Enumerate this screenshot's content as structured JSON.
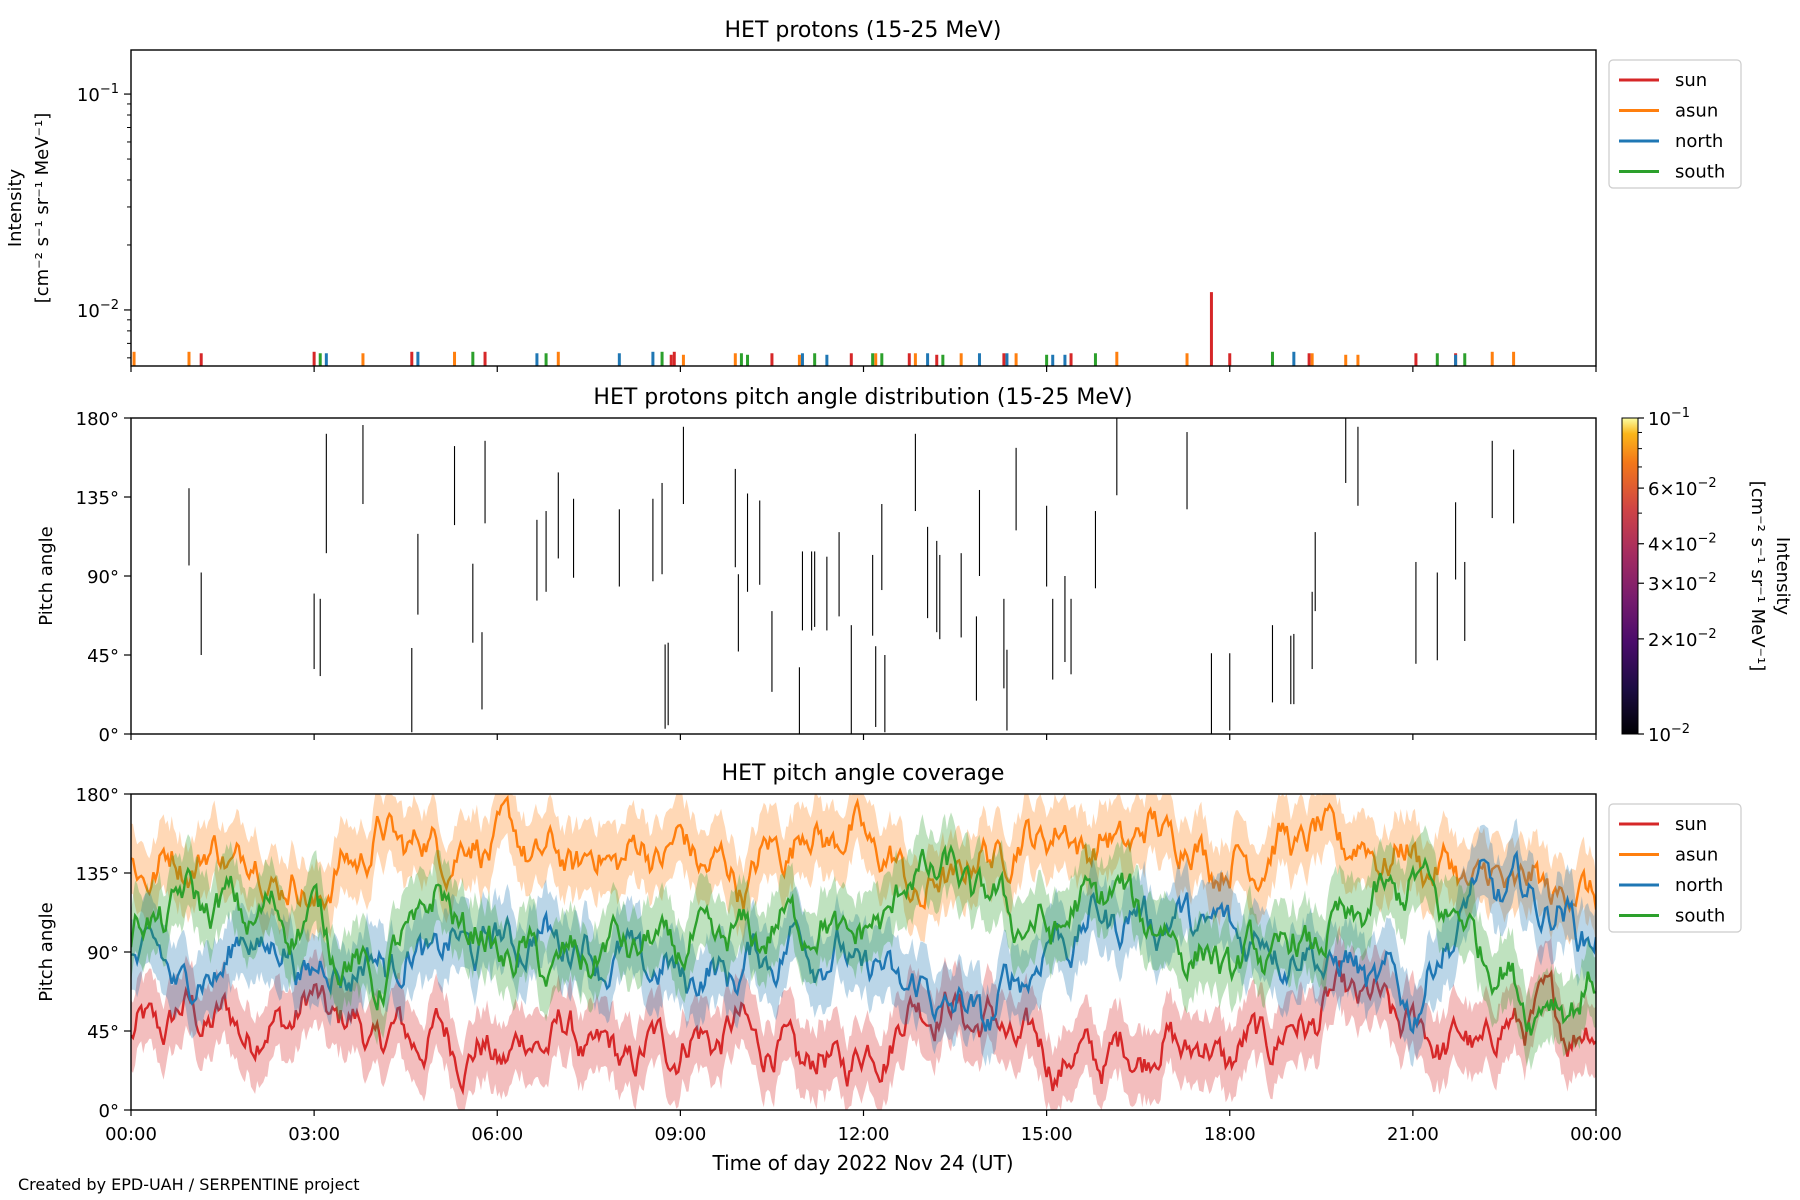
{
  "footer": "Created by EPD-UAH / SERPENTINE project",
  "colors": {
    "sun": "#d62728",
    "asun": "#ff7f0e",
    "north": "#1f77b4",
    "south": "#2ca02c",
    "pad_line": "#000000"
  },
  "chart_data": [
    {
      "type": "line",
      "title": "HET protons (15-25 MeV)",
      "xlabel": "",
      "ylabel_line1": "Intensity",
      "ylabel_line2": "[cm⁻² s⁻¹ sr⁻¹ MeV⁻¹]",
      "yscale": "log",
      "ylim": [
        0.0055,
        0.16
      ],
      "ytick_labels": [
        {
          "value": 0.1,
          "base": "10",
          "exp": "−1"
        },
        {
          "value": 0.01,
          "base": "10",
          "exp": "−2"
        }
      ],
      "xlim": [
        0,
        24
      ],
      "baseline": 0.0055,
      "legend_placement": "outside upper right",
      "series": [
        {
          "name": "sun",
          "color": "#d62728",
          "points": [
            [
              1.15,
              0.0063
            ],
            [
              3.0,
              0.0064
            ],
            [
              4.6,
              0.0064
            ],
            [
              5.8,
              0.0064
            ],
            [
              8.9,
              0.0064
            ],
            [
              8.85,
              0.0062
            ],
            [
              10.5,
              0.0063
            ],
            [
              11.8,
              0.0063
            ],
            [
              12.75,
              0.0063
            ],
            [
              13.2,
              0.0062
            ],
            [
              14.3,
              0.0063
            ],
            [
              15.4,
              0.0063
            ],
            [
              17.7,
              0.0121
            ],
            [
              18.0,
              0.0063
            ],
            [
              19.3,
              0.0063
            ],
            [
              21.05,
              0.0063
            ],
            [
              21.7,
              0.0063
            ]
          ]
        },
        {
          "name": "asun",
          "color": "#ff7f0e",
          "points": [
            [
              0.05,
              0.0064
            ],
            [
              0.95,
              0.0064
            ],
            [
              3.8,
              0.0063
            ],
            [
              5.3,
              0.0064
            ],
            [
              7.0,
              0.0064
            ],
            [
              9.05,
              0.0062
            ],
            [
              9.9,
              0.0063
            ],
            [
              10.95,
              0.0062
            ],
            [
              12.2,
              0.0063
            ],
            [
              12.85,
              0.0063
            ],
            [
              13.6,
              0.0063
            ],
            [
              14.5,
              0.0063
            ],
            [
              16.15,
              0.0064
            ],
            [
              17.3,
              0.0063
            ],
            [
              19.35,
              0.0063
            ],
            [
              19.9,
              0.0062
            ],
            [
              20.1,
              0.0062
            ],
            [
              22.3,
              0.0064
            ],
            [
              22.65,
              0.0064
            ]
          ]
        },
        {
          "name": "north",
          "color": "#1f77b4",
          "points": [
            [
              3.2,
              0.0063
            ],
            [
              4.7,
              0.0064
            ],
            [
              6.65,
              0.0063
            ],
            [
              8.0,
              0.0063
            ],
            [
              8.55,
              0.0064
            ],
            [
              11.0,
              0.0063
            ],
            [
              11.4,
              0.0062
            ],
            [
              13.05,
              0.0063
            ],
            [
              13.9,
              0.0063
            ],
            [
              14.35,
              0.0063
            ],
            [
              15.1,
              0.0062
            ],
            [
              15.3,
              0.0062
            ],
            [
              19.05,
              0.0064
            ],
            [
              21.7,
              0.0062
            ]
          ]
        },
        {
          "name": "south",
          "color": "#2ca02c",
          "points": [
            [
              3.1,
              0.0063
            ],
            [
              5.6,
              0.0064
            ],
            [
              6.8,
              0.0063
            ],
            [
              8.7,
              0.0064
            ],
            [
              10.0,
              0.0063
            ],
            [
              10.1,
              0.0062
            ],
            [
              11.2,
              0.0063
            ],
            [
              12.15,
              0.0063
            ],
            [
              12.3,
              0.0063
            ],
            [
              13.3,
              0.0062
            ],
            [
              15.0,
              0.0062
            ],
            [
              15.8,
              0.0063
            ],
            [
              18.7,
              0.0064
            ],
            [
              21.4,
              0.0063
            ],
            [
              21.85,
              0.0063
            ]
          ]
        }
      ]
    },
    {
      "type": "heatmap",
      "title": "HET protons pitch angle distribution (15-25 MeV)",
      "ylabel": "Pitch angle",
      "ylim": [
        0,
        180
      ],
      "xlim": [
        0,
        24
      ],
      "ytick_labels": [
        "0°",
        "45°",
        "90°",
        "135°",
        "180°"
      ],
      "colorbar": {
        "label_line1": "Intensity",
        "label_line2": "[cm⁻² s⁻¹ sr⁻¹ MeV⁻¹]",
        "scale": "log",
        "range": [
          0.01,
          0.1
        ],
        "colormap": "inferno",
        "tick_labels": [
          {
            "value": 0.1,
            "mant": "",
            "base": "10",
            "exp": "−1"
          },
          {
            "value": 0.06,
            "mant": "6×",
            "base": "10",
            "exp": "−2"
          },
          {
            "value": 0.04,
            "mant": "4×",
            "base": "10",
            "exp": "−2"
          },
          {
            "value": 0.03,
            "mant": "3×",
            "base": "10",
            "exp": "−2"
          },
          {
            "value": 0.02,
            "mant": "2×",
            "base": "10",
            "exp": "−2"
          },
          {
            "value": 0.01,
            "mant": "",
            "base": "10",
            "exp": "−2"
          }
        ]
      },
      "segments": [
        [
          0.95,
          96,
          140
        ],
        [
          1.15,
          45,
          92
        ],
        [
          3.0,
          37,
          80
        ],
        [
          3.1,
          33,
          77
        ],
        [
          3.2,
          103,
          171
        ],
        [
          3.8,
          131,
          176
        ],
        [
          4.6,
          1,
          49
        ],
        [
          4.7,
          68,
          114
        ],
        [
          5.3,
          119,
          164
        ],
        [
          5.6,
          52,
          97
        ],
        [
          5.75,
          14,
          58
        ],
        [
          5.8,
          120,
          167
        ],
        [
          6.65,
          76,
          122
        ],
        [
          6.8,
          81,
          127
        ],
        [
          7.0,
          100,
          149
        ],
        [
          7.25,
          89,
          134
        ],
        [
          8.0,
          84,
          128
        ],
        [
          8.55,
          87,
          134
        ],
        [
          8.7,
          91,
          143
        ],
        [
          8.75,
          3,
          51
        ],
        [
          8.8,
          5,
          52
        ],
        [
          9.05,
          131,
          175
        ],
        [
          9.9,
          95,
          151
        ],
        [
          9.95,
          47,
          91
        ],
        [
          10.1,
          81,
          137
        ],
        [
          10.3,
          85,
          133
        ],
        [
          10.5,
          24,
          70
        ],
        [
          10.95,
          0,
          38
        ],
        [
          11.0,
          59,
          104
        ],
        [
          11.15,
          59,
          104
        ],
        [
          11.2,
          61,
          104
        ],
        [
          11.4,
          59,
          101
        ],
        [
          11.6,
          67,
          115
        ],
        [
          11.8,
          0,
          62
        ],
        [
          12.15,
          56,
          102
        ],
        [
          12.2,
          4,
          50
        ],
        [
          12.3,
          82,
          131
        ],
        [
          12.35,
          1,
          45
        ],
        [
          12.85,
          127,
          171
        ],
        [
          13.05,
          66,
          118
        ],
        [
          13.2,
          58,
          110
        ],
        [
          13.25,
          54,
          102
        ],
        [
          13.6,
          55,
          103
        ],
        [
          13.85,
          19,
          67
        ],
        [
          13.9,
          90,
          139
        ],
        [
          14.3,
          26,
          77
        ],
        [
          14.35,
          2,
          48
        ],
        [
          14.5,
          116,
          163
        ],
        [
          15.0,
          84,
          130
        ],
        [
          15.1,
          31,
          77
        ],
        [
          15.3,
          41,
          90
        ],
        [
          15.4,
          34,
          77
        ],
        [
          15.8,
          83,
          127
        ],
        [
          16.15,
          136,
          180
        ],
        [
          17.3,
          128,
          172
        ],
        [
          17.7,
          0,
          46
        ],
        [
          18.0,
          2,
          46
        ],
        [
          18.7,
          18,
          62
        ],
        [
          19.0,
          17,
          56
        ],
        [
          19.05,
          17,
          57
        ],
        [
          19.35,
          37,
          81
        ],
        [
          19.4,
          70,
          115
        ],
        [
          19.9,
          143,
          180
        ],
        [
          20.1,
          130,
          175
        ],
        [
          21.05,
          40,
          98
        ],
        [
          21.4,
          42,
          92
        ],
        [
          21.7,
          88,
          132
        ],
        [
          21.85,
          53,
          98
        ],
        [
          22.3,
          123,
          167
        ],
        [
          22.65,
          120,
          162
        ]
      ]
    },
    {
      "type": "line",
      "title": "HET pitch angle coverage",
      "xlabel": "Time of day 2022 Nov 24 (UT)",
      "ylabel": "Pitch angle",
      "ylim": [
        0,
        180
      ],
      "xlim": [
        0,
        24
      ],
      "ytick_labels": [
        "0°",
        "45°",
        "90°",
        "135°",
        "180°"
      ],
      "xtick_labels": [
        "00:00",
        "03:00",
        "06:00",
        "09:00",
        "12:00",
        "15:00",
        "18:00",
        "21:00",
        "00:00"
      ],
      "legend_placement": "outside upper right",
      "band_halfwidth_deg": 20,
      "series": [
        {
          "name": "sun",
          "color": "#d62728",
          "x": [
            0,
            1,
            2,
            3,
            4,
            5,
            6,
            7,
            8,
            9,
            10,
            11,
            12,
            13,
            14,
            15,
            16,
            17,
            18,
            19,
            20,
            21,
            22,
            23,
            24
          ],
          "values": [
            40,
            55,
            45,
            60,
            40,
            42,
            30,
            45,
            25,
            40,
            45,
            25,
            30,
            65,
            50,
            30,
            30,
            40,
            30,
            45,
            65,
            45,
            35,
            55,
            45
          ]
        },
        {
          "name": "asun",
          "color": "#ff7f0e",
          "x": [
            0,
            1,
            2,
            3,
            4,
            5,
            6,
            7,
            8,
            9,
            10,
            11,
            12,
            13,
            14,
            15,
            16,
            17,
            18,
            19,
            20,
            21,
            22,
            23,
            24
          ],
          "values": [
            135,
            145,
            145,
            120,
            155,
            150,
            155,
            140,
            145,
            150,
            130,
            160,
            155,
            120,
            145,
            160,
            150,
            160,
            140,
            155,
            150,
            145,
            130,
            125,
            125
          ]
        },
        {
          "name": "north",
          "color": "#1f77b4",
          "x": [
            0,
            1,
            2,
            3,
            4,
            5,
            6,
            7,
            8,
            9,
            10,
            11,
            12,
            13,
            14,
            15,
            16,
            17,
            18,
            19,
            20,
            21,
            22,
            23,
            24
          ],
          "values": [
            90,
            70,
            100,
            80,
            85,
            90,
            95,
            100,
            85,
            75,
            80,
            100,
            80,
            65,
            50,
            95,
            110,
            110,
            100,
            95,
            80,
            60,
            125,
            120,
            100
          ]
        },
        {
          "name": "south",
          "color": "#2ca02c",
          "x": [
            0,
            1,
            2,
            3,
            4,
            5,
            6,
            7,
            8,
            9,
            10,
            11,
            12,
            13,
            14,
            15,
            16,
            17,
            18,
            19,
            20,
            21,
            22,
            23,
            24
          ],
          "values": [
            100,
            120,
            110,
            110,
            70,
            120,
            90,
            80,
            95,
            90,
            95,
            110,
            95,
            140,
            120,
            100,
            125,
            100,
            80,
            90,
            105,
            130,
            100,
            60,
            70
          ]
        }
      ]
    }
  ]
}
